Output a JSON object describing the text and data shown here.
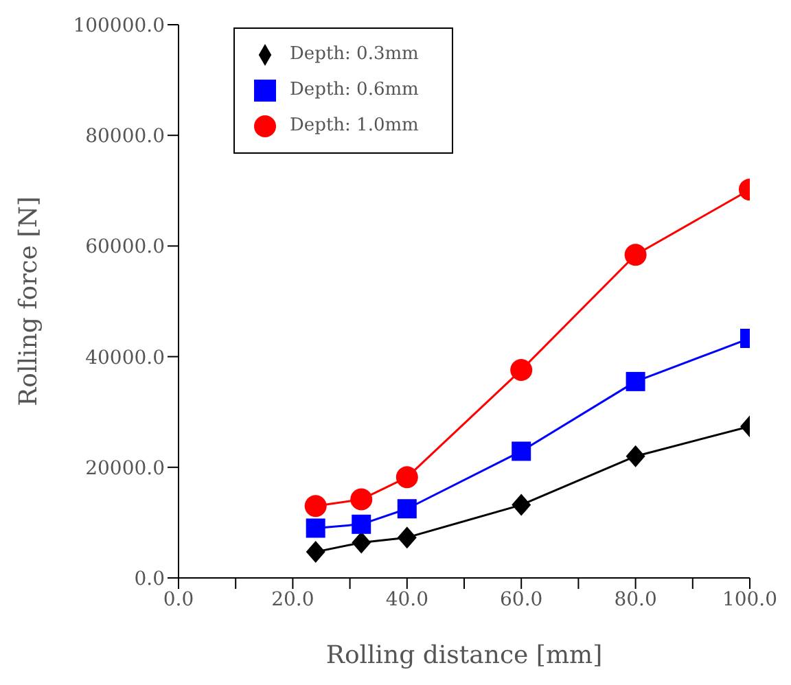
{
  "chart_data": {
    "type": "line",
    "xlabel": "Rolling distance [mm]",
    "ylabel": "Rolling force [N]",
    "xlim": [
      0,
      100
    ],
    "ylim": [
      0,
      100000
    ],
    "xticks": [
      {
        "value": 0,
        "label": "0.0"
      },
      {
        "value": 10,
        "label": null
      },
      {
        "value": 20,
        "label": "20.0"
      },
      {
        "value": 30,
        "label": null
      },
      {
        "value": 40,
        "label": "40.0"
      },
      {
        "value": 50,
        "label": null
      },
      {
        "value": 60,
        "label": "60.0"
      },
      {
        "value": 70,
        "label": null
      },
      {
        "value": 80,
        "label": "80.0"
      },
      {
        "value": 90,
        "label": null
      },
      {
        "value": 100,
        "label": "100.0"
      }
    ],
    "yticks": [
      {
        "value": 0,
        "label": "0.0"
      },
      {
        "value": 20000,
        "label": "20000.0"
      },
      {
        "value": 40000,
        "label": "40000.0"
      },
      {
        "value": 60000,
        "label": "60000.0"
      },
      {
        "value": 80000,
        "label": "80000.0"
      },
      {
        "value": 100000,
        "label": "100000.0"
      }
    ],
    "x": [
      24,
      32,
      40,
      60,
      80,
      100
    ],
    "legend": "top left",
    "grid": false,
    "line_style": "solid",
    "series": [
      {
        "name": "Depth: 0.3mm",
        "color": "#000000",
        "marker": "diamond",
        "values": [
          4700,
          6400,
          7300,
          13200,
          22000,
          27400
        ]
      },
      {
        "name": "Depth: 0.6mm",
        "color": "#0000ff",
        "marker": "square",
        "values": [
          9000,
          9700,
          12500,
          22900,
          35500,
          43300
        ]
      },
      {
        "name": "Depth: 1.0mm",
        "color": "#ff0000",
        "marker": "circle",
        "values": [
          13000,
          14200,
          18200,
          37600,
          58400,
          70200
        ]
      }
    ]
  }
}
